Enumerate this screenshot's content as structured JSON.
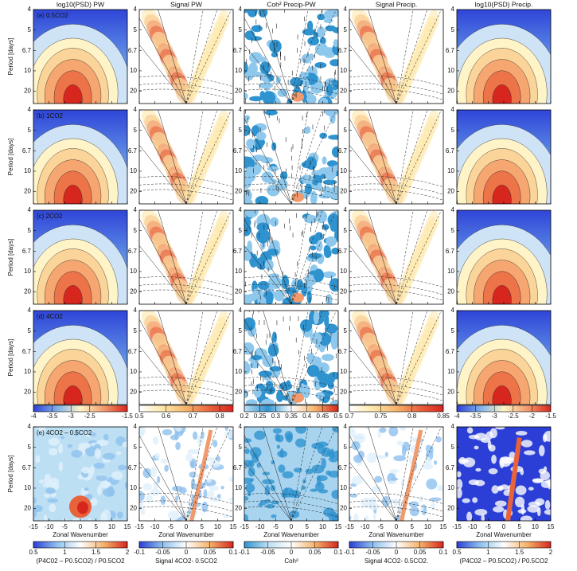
{
  "column_titles": [
    "log10(PSD) PW",
    "Signal PW",
    "Coh² Precip-PW",
    "Signal Precip.",
    "log10(PSD) Precip."
  ],
  "row_labels": [
    "(a) 0.5CO2",
    "(b) 1CO2",
    "(c) 2CO2",
    "(d) 4CO2",
    "(e) 4CO2 – 0.5CO2"
  ],
  "y_axis_label": "Period [days]",
  "x_axis_label": "Zonal Wavenumber",
  "yticks": [
    4,
    5,
    6.7,
    10,
    20
  ],
  "ylim": [
    50,
    4
  ],
  "xticks": [
    -15,
    -10,
    -5,
    0,
    5,
    10,
    15
  ],
  "xlim": [
    -15,
    15
  ],
  "colorbars": [
    {
      "lim": [
        -4,
        -1.5
      ],
      "ticks": [
        -4,
        -3.5,
        -3,
        -2.5,
        -1.5
      ],
      "colors": [
        "#2b3fd6",
        "#7fb0ea",
        "#fff4c8",
        "#f29a6c",
        "#d7261e"
      ]
    },
    {
      "lim": [
        0.5,
        0.85
      ],
      "ticks": [
        0.5,
        0.6,
        0.7,
        0.8
      ],
      "colors": [
        "#ffffff",
        "#fde8a8",
        "#f6b36b",
        "#e8623c",
        "#d7261e"
      ]
    },
    {
      "lim": [
        0.2,
        0.5
      ],
      "ticks": [
        0.2,
        0.25,
        0.3,
        0.35,
        0.4,
        0.45,
        0.5
      ],
      "colors": [
        "#bcdff3",
        "#2f93cf",
        "#ffffff",
        "#f6b36b",
        "#d7261e"
      ]
    },
    {
      "lim": [
        0.7,
        0.85
      ],
      "ticks": [
        0.7,
        0.75,
        0.8,
        0.85
      ],
      "colors": [
        "#ffffff",
        "#fde8a8",
        "#f6b36b",
        "#e8623c",
        "#d7261e"
      ]
    },
    {
      "lim": [
        -4,
        -1.5
      ],
      "ticks": [
        -4,
        -3.5,
        -3,
        -2.5,
        -2,
        -1.5
      ],
      "colors": [
        "#2b3fd6",
        "#7fb0ea",
        "#fff4c8",
        "#f29a6c",
        "#d7261e"
      ]
    }
  ],
  "difference_colorbars": [
    {
      "lim": [
        0.5,
        2
      ],
      "ticks": [
        0.5,
        1,
        1.5,
        2
      ],
      "label": "(P4C02 – P0.5CO2) / P0.5CO2",
      "colors": [
        "#2b3fd6",
        "#8fc1ee",
        "#ffffff",
        "#f6b36b",
        "#d7261e"
      ]
    },
    {
      "lim": [
        -0.1,
        0.1
      ],
      "ticks": [
        -0.1,
        -0.05,
        0,
        0.05,
        0.1
      ],
      "label": "Signal 4CO2- 0.5CO2",
      "colors": [
        "#2b3fd6",
        "#8fc1ee",
        "#ffffff",
        "#f6b36b",
        "#d7261e"
      ]
    },
    {
      "lim": [
        -0.1,
        0.1
      ],
      "ticks": [
        -0.1,
        -0.05,
        0,
        0.05,
        0.1
      ],
      "label": "Coh²",
      "colors": [
        "#2f93cf",
        "#bcdff3",
        "#ffffff",
        "#f6b36b",
        "#d7261e"
      ]
    },
    {
      "lim": [
        -0.1,
        0.1
      ],
      "ticks": [
        -0.1,
        -0.05,
        0,
        0.05,
        0.1
      ],
      "label": "Signal 4CO2- 0.5CO2.",
      "colors": [
        "#2b3fd6",
        "#8fc1ee",
        "#ffffff",
        "#f6b36b",
        "#d7261e"
      ]
    },
    {
      "lim": [
        0.5,
        2
      ],
      "ticks": [
        0.5,
        1,
        1.5,
        2
      ],
      "label": "(P4C02 – P0.5CO2) / P0.5CO2",
      "colors": [
        "#2b3fd6",
        "#8fc1ee",
        "#ffffff",
        "#f6b36b",
        "#d7261e"
      ]
    }
  ]
}
